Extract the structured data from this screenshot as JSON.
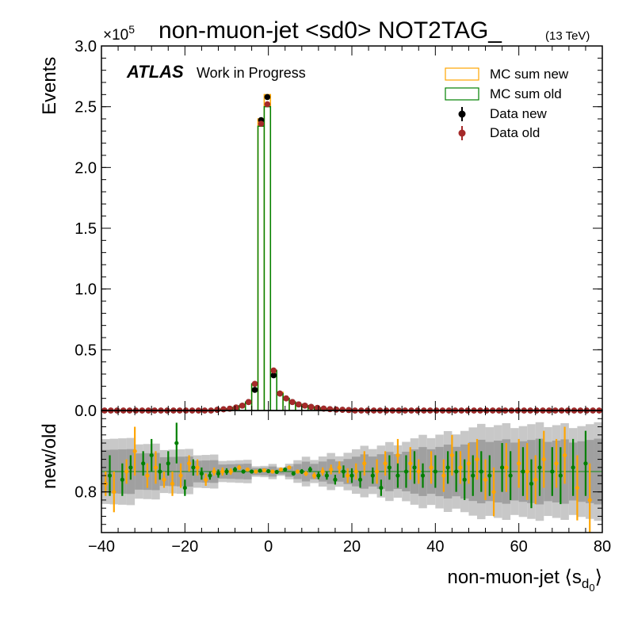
{
  "chart_data": {
    "type": "histogram-ratio",
    "title": "non-muon-jet <sd0> NOT2TAG_",
    "title_suffix": "(13 TeV)",
    "experiment_label": "ATLAS",
    "experiment_status": "Work in Progress",
    "x_label_main": "non-muon-jet ⟨s",
    "x_label_sub": "d",
    "x_label_subsub": "0",
    "x_label_close": "⟩",
    "y_label_top": "Events",
    "y_label_bottom": "new/old",
    "y_scale_note_base": "×10",
    "y_scale_note_exp": "5",
    "x_range": [
      -40,
      80
    ],
    "top_y_range": [
      0,
      3.0
    ],
    "bottom_y_range": [
      0.7,
      1.0
    ],
    "x_ticks": [
      "−40",
      "−20",
      "0",
      "20",
      "40",
      "60",
      "80"
    ],
    "x_tick_values": [
      -40,
      -20,
      0,
      20,
      40,
      60,
      80
    ],
    "top_y_ticks": [
      "0.0",
      "0.5",
      "1.0",
      "1.5",
      "2.0",
      "2.5",
      "3.0"
    ],
    "top_y_tick_values": [
      0,
      0.5,
      1.0,
      1.5,
      2.0,
      2.5,
      3.0
    ],
    "bottom_y_ticks": [
      "0.8"
    ],
    "bottom_y_tick_values": [
      0.8
    ],
    "legend": {
      "position": "top-right",
      "mc_new": "MC sum new",
      "mc_old": "MC sum old",
      "data_new": "Data new",
      "data_old": "Data old"
    },
    "colors": {
      "mc_new": "#ffa500",
      "mc_old": "#008000",
      "data_new": "#000000",
      "data_old": "#a52a2a",
      "band_dark": "#a0a0a0",
      "band_light": "#c8c8c8"
    },
    "bin_edges_start": -40,
    "bin_width": 1.5,
    "n_bins": 80,
    "peak_bins": [
      {
        "x": -3.25,
        "mc_new": 0.21,
        "mc_old": 0.22,
        "data_new": 0.17,
        "data_old": 0.22
      },
      {
        "x": -1.75,
        "mc_new": 2.4,
        "mc_old": 2.34,
        "data_new": 2.39,
        "data_old": 2.36
      },
      {
        "x": -0.25,
        "mc_new": 2.6,
        "mc_old": 2.5,
        "data_new": 2.58,
        "data_old": 2.52
      },
      {
        "x": 1.25,
        "mc_new": 0.33,
        "mc_old": 0.33,
        "data_new": 0.29,
        "data_old": 0.33
      },
      {
        "x": 2.75,
        "mc_new": 0.15,
        "mc_old": 0.14,
        "data_new": 0.14,
        "data_old": 0.14
      }
    ],
    "tail_left": [
      {
        "x": -4.75,
        "v": 0.07
      },
      {
        "x": -6.25,
        "v": 0.04
      },
      {
        "x": -7.75,
        "v": 0.025
      },
      {
        "x": -9.25,
        "v": 0.015
      },
      {
        "x": -10.75,
        "v": 0.01
      },
      {
        "x": -12.25,
        "v": 0.006
      }
    ],
    "tail_right": [
      {
        "x": 4.25,
        "v": 0.1
      },
      {
        "x": 5.75,
        "v": 0.07
      },
      {
        "x": 7.25,
        "v": 0.05
      },
      {
        "x": 8.75,
        "v": 0.04
      },
      {
        "x": 10.25,
        "v": 0.03
      },
      {
        "x": 11.75,
        "v": 0.022
      },
      {
        "x": 13.25,
        "v": 0.016
      },
      {
        "x": 14.75,
        "v": 0.011
      },
      {
        "x": 16.25,
        "v": 0.008
      },
      {
        "x": 17.75,
        "v": 0.006
      },
      {
        "x": 19.25,
        "v": 0.004
      }
    ],
    "ratio_new": [
      {
        "x": -39,
        "y": 0.82,
        "e": 0.03
      },
      {
        "x": -37,
        "y": 0.8,
        "e": 0.05
      },
      {
        "x": -34,
        "y": 0.85,
        "e": 0.03
      },
      {
        "x": -32,
        "y": 0.9,
        "e": 0.06
      },
      {
        "x": -29,
        "y": 0.84,
        "e": 0.03
      },
      {
        "x": -27,
        "y": 0.86,
        "e": 0.04
      },
      {
        "x": -25,
        "y": 0.83,
        "e": 0.02
      },
      {
        "x": -23,
        "y": 0.82,
        "e": 0.03
      },
      {
        "x": -21,
        "y": 0.84,
        "e": 0.03
      },
      {
        "x": -19,
        "y": 0.87,
        "e": 0.02
      },
      {
        "x": -17,
        "y": 0.86,
        "e": 0.02
      },
      {
        "x": -15,
        "y": 0.83,
        "e": 0.015
      },
      {
        "x": -13,
        "y": 0.85,
        "e": 0.01
      },
      {
        "x": -11,
        "y": 0.85,
        "e": 0.01
      },
      {
        "x": -9,
        "y": 0.85,
        "e": 0.008
      },
      {
        "x": -7,
        "y": 0.86,
        "e": 0.006
      },
      {
        "x": -5,
        "y": 0.855,
        "e": 0.004
      },
      {
        "x": -3,
        "y": 0.85,
        "e": 0.003
      },
      {
        "x": -1,
        "y": 0.853,
        "e": 0.002
      },
      {
        "x": 1,
        "y": 0.85,
        "e": 0.002
      },
      {
        "x": 3,
        "y": 0.855,
        "e": 0.003
      },
      {
        "x": 5,
        "y": 0.86,
        "e": 0.004
      },
      {
        "x": 7,
        "y": 0.85,
        "e": 0.005
      },
      {
        "x": 9,
        "y": 0.845,
        "e": 0.006
      },
      {
        "x": 11,
        "y": 0.84,
        "e": 0.008
      },
      {
        "x": 13,
        "y": 0.85,
        "e": 0.01
      },
      {
        "x": 15,
        "y": 0.855,
        "e": 0.012
      },
      {
        "x": 17,
        "y": 0.86,
        "e": 0.015
      },
      {
        "x": 19,
        "y": 0.84,
        "e": 0.018
      },
      {
        "x": 21,
        "y": 0.85,
        "e": 0.02
      },
      {
        "x": 23,
        "y": 0.87,
        "e": 0.03
      },
      {
        "x": 26,
        "y": 0.85,
        "e": 0.03
      },
      {
        "x": 28,
        "y": 0.87,
        "e": 0.03
      },
      {
        "x": 31,
        "y": 0.89,
        "e": 0.04
      },
      {
        "x": 34,
        "y": 0.87,
        "e": 0.04
      },
      {
        "x": 36,
        "y": 0.85,
        "e": 0.03
      },
      {
        "x": 39,
        "y": 0.86,
        "e": 0.04
      },
      {
        "x": 42,
        "y": 0.84,
        "e": 0.04
      },
      {
        "x": 44,
        "y": 0.89,
        "e": 0.05
      },
      {
        "x": 46,
        "y": 0.86,
        "e": 0.04
      },
      {
        "x": 48,
        "y": 0.87,
        "e": 0.05
      },
      {
        "x": 50,
        "y": 0.88,
        "e": 0.05
      },
      {
        "x": 52,
        "y": 0.83,
        "e": 0.05
      },
      {
        "x": 54,
        "y": 0.8,
        "e": 0.06
      },
      {
        "x": 57,
        "y": 0.86,
        "e": 0.06
      },
      {
        "x": 60,
        "y": 0.87,
        "e": 0.06
      },
      {
        "x": 62,
        "y": 0.85,
        "e": 0.07
      },
      {
        "x": 64,
        "y": 0.83,
        "e": 0.06
      },
      {
        "x": 66,
        "y": 0.88,
        "e": 0.07
      },
      {
        "x": 69,
        "y": 0.87,
        "e": 0.06
      },
      {
        "x": 71,
        "y": 0.89,
        "e": 0.07
      },
      {
        "x": 74,
        "y": 0.81,
        "e": 0.08
      },
      {
        "x": 77,
        "y": 0.78,
        "e": 0.09
      }
    ],
    "ratio_old": [
      {
        "x": -38,
        "y": 0.84,
        "e": 0.05
      },
      {
        "x": -35,
        "y": 0.83,
        "e": 0.04
      },
      {
        "x": -33,
        "y": 0.86,
        "e": 0.03
      },
      {
        "x": -30,
        "y": 0.87,
        "e": 0.03
      },
      {
        "x": -28,
        "y": 0.89,
        "e": 0.04
      },
      {
        "x": -26,
        "y": 0.85,
        "e": 0.02
      },
      {
        "x": -24,
        "y": 0.87,
        "e": 0.03
      },
      {
        "x": -22,
        "y": 0.92,
        "e": 0.05
      },
      {
        "x": -20,
        "y": 0.81,
        "e": 0.02
      },
      {
        "x": -18,
        "y": 0.86,
        "e": 0.02
      },
      {
        "x": -16,
        "y": 0.845,
        "e": 0.015
      },
      {
        "x": -14,
        "y": 0.84,
        "e": 0.01
      },
      {
        "x": -12,
        "y": 0.845,
        "e": 0.01
      },
      {
        "x": -10,
        "y": 0.85,
        "e": 0.008
      },
      {
        "x": -8,
        "y": 0.855,
        "e": 0.006
      },
      {
        "x": -6,
        "y": 0.85,
        "e": 0.005
      },
      {
        "x": -4,
        "y": 0.85,
        "e": 0.004
      },
      {
        "x": -2,
        "y": 0.852,
        "e": 0.002
      },
      {
        "x": 0,
        "y": 0.851,
        "e": 0.002
      },
      {
        "x": 2,
        "y": 0.849,
        "e": 0.003
      },
      {
        "x": 4,
        "y": 0.855,
        "e": 0.004
      },
      {
        "x": 6,
        "y": 0.845,
        "e": 0.005
      },
      {
        "x": 8,
        "y": 0.85,
        "e": 0.006
      },
      {
        "x": 10,
        "y": 0.855,
        "e": 0.007
      },
      {
        "x": 12,
        "y": 0.84,
        "e": 0.009
      },
      {
        "x": 14,
        "y": 0.84,
        "e": 0.01
      },
      {
        "x": 16,
        "y": 0.83,
        "e": 0.012
      },
      {
        "x": 18,
        "y": 0.85,
        "e": 0.015
      },
      {
        "x": 20,
        "y": 0.84,
        "e": 0.018
      },
      {
        "x": 22,
        "y": 0.83,
        "e": 0.02
      },
      {
        "x": 25,
        "y": 0.84,
        "e": 0.02
      },
      {
        "x": 27,
        "y": 0.81,
        "e": 0.02
      },
      {
        "x": 29,
        "y": 0.86,
        "e": 0.03
      },
      {
        "x": 31,
        "y": 0.84,
        "e": 0.03
      },
      {
        "x": 33,
        "y": 0.85,
        "e": 0.04
      },
      {
        "x": 35,
        "y": 0.86,
        "e": 0.04
      },
      {
        "x": 37,
        "y": 0.84,
        "e": 0.03
      },
      {
        "x": 40,
        "y": 0.85,
        "e": 0.04
      },
      {
        "x": 43,
        "y": 0.86,
        "e": 0.04
      },
      {
        "x": 45,
        "y": 0.85,
        "e": 0.05
      },
      {
        "x": 47,
        "y": 0.83,
        "e": 0.05
      },
      {
        "x": 49,
        "y": 0.84,
        "e": 0.05
      },
      {
        "x": 51,
        "y": 0.85,
        "e": 0.05
      },
      {
        "x": 53,
        "y": 0.84,
        "e": 0.05
      },
      {
        "x": 56,
        "y": 0.86,
        "e": 0.06
      },
      {
        "x": 58,
        "y": 0.84,
        "e": 0.06
      },
      {
        "x": 61,
        "y": 0.85,
        "e": 0.06
      },
      {
        "x": 63,
        "y": 0.82,
        "e": 0.06
      },
      {
        "x": 65,
        "y": 0.86,
        "e": 0.07
      },
      {
        "x": 68,
        "y": 0.85,
        "e": 0.06
      },
      {
        "x": 70,
        "y": 0.84,
        "e": 0.07
      },
      {
        "x": 73,
        "y": 0.86,
        "e": 0.07
      },
      {
        "x": 76,
        "y": 0.87,
        "e": 0.08
      }
    ]
  }
}
